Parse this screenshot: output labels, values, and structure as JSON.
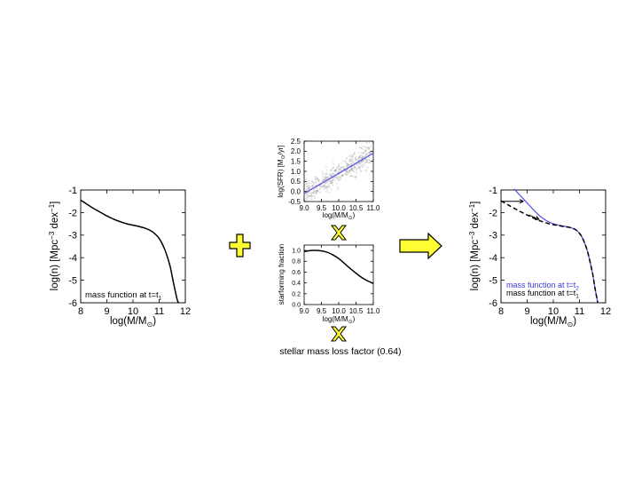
{
  "colors": {
    "background": "#ffffff",
    "axes": "#000000",
    "curve": "#000000",
    "blue_curve": "#5a5ae6",
    "scatter": "#9a9a9a",
    "symbol_fill": "#ffff33",
    "symbol_stroke": "#000000"
  },
  "operators": {
    "plus": "plus-icon",
    "times": "times-icon",
    "arrow": "right-arrow-icon"
  },
  "mass_loss_text": "stellar mass loss factor (0.64)",
  "chart_data": [
    {
      "id": "left",
      "type": "line",
      "xlabel": "log(M/M",
      "xlabel_sub": "⊙",
      "xlabel_close": ")",
      "ylabel": "log(n) [Mpc",
      "ylabel_sup1": "−3",
      "ylabel_mid": " dex",
      "ylabel_sup2": "−1",
      "ylabel_close": "]",
      "xlim": [
        8,
        12
      ],
      "ylim": [
        -6,
        -1
      ],
      "xticks": [
        "8",
        "9",
        "10",
        "11",
        "12"
      ],
      "yticks": [
        "-1",
        "-2",
        "-3",
        "-4",
        "-5",
        "-6"
      ],
      "annotation": "mass function at t=t",
      "annotation_sub": "1",
      "series": [
        {
          "x": [
            8.0,
            8.2,
            8.4,
            8.6,
            8.8,
            9.0,
            9.2,
            9.4,
            9.6,
            9.8,
            10.0,
            10.2,
            10.4,
            10.6,
            10.8,
            11.0,
            11.2,
            11.4,
            11.5,
            11.6,
            11.7,
            11.75
          ],
          "y": [
            -1.45,
            -1.6,
            -1.75,
            -1.89,
            -2.02,
            -2.15,
            -2.26,
            -2.36,
            -2.44,
            -2.51,
            -2.56,
            -2.61,
            -2.67,
            -2.76,
            -2.9,
            -3.15,
            -3.6,
            -4.3,
            -4.85,
            -5.4,
            -5.9,
            -6.0
          ]
        }
      ]
    },
    {
      "id": "sfr",
      "type": "scatter",
      "xlabel": "log(M/M",
      "xlabel_sub": "⊙",
      "xlabel_close": ")",
      "ylabel": "log(SFR) [M",
      "ylabel_sub": "⊙",
      "ylabel_close": "/yr]",
      "xlim": [
        9.0,
        11.0
      ],
      "ylim": [
        -0.5,
        2.5
      ],
      "xticks": [
        "9.0",
        "9.5",
        "10.0",
        "10.5",
        "11.0"
      ],
      "yticks": [
        "2.5",
        "2.0",
        "1.5",
        "1.0",
        "0.5",
        "0.0",
        "-0.5"
      ],
      "fit_line": {
        "x": [
          9.0,
          11.0
        ],
        "y": [
          -0.1,
          1.9
        ]
      }
    },
    {
      "id": "sf_fraction",
      "type": "line",
      "xlabel": "log(M/M",
      "xlabel_sub": "⊙",
      "xlabel_close": ")",
      "ylabel": "starforming fraction",
      "xlim": [
        9.0,
        11.0
      ],
      "ylim": [
        0.0,
        1.1
      ],
      "xticks": [
        "9.0",
        "9.5",
        "10.0",
        "10.5",
        "11.0"
      ],
      "yticks": [
        "1.0",
        "0.8",
        "0.6",
        "0.4",
        "0.2",
        "0.0"
      ],
      "series": [
        {
          "x": [
            9.0,
            9.2,
            9.4,
            9.6,
            9.8,
            10.0,
            10.2,
            10.4,
            10.6,
            10.8,
            11.0
          ],
          "y": [
            0.98,
            1.0,
            1.0,
            0.98,
            0.93,
            0.85,
            0.74,
            0.63,
            0.53,
            0.45,
            0.39
          ]
        }
      ]
    },
    {
      "id": "right",
      "type": "line",
      "xlabel": "log(M/M",
      "xlabel_sub": "⊙",
      "xlabel_close": ")",
      "ylabel": "log(n) [Mpc",
      "ylabel_sup1": "−3",
      "ylabel_mid": " dex",
      "ylabel_sup2": "−1",
      "ylabel_close": "]",
      "xlim": [
        8,
        12
      ],
      "ylim": [
        -6,
        -1
      ],
      "xticks": [
        "8",
        "9",
        "10",
        "11",
        "12"
      ],
      "yticks": [
        "-1",
        "-2",
        "-3",
        "-4",
        "-5",
        "-6"
      ],
      "legend": [
        {
          "text": "mass function at t=t",
          "sub": "2"
        },
        {
          "text": "mass function at t=t",
          "sub": "1"
        }
      ],
      "series": [
        {
          "style": "blue",
          "x": [
            8.5,
            8.7,
            8.9,
            9.1,
            9.3,
            9.5,
            9.7,
            9.9,
            10.1,
            10.3,
            10.5,
            10.7,
            10.9,
            11.1,
            11.3,
            11.5,
            11.6,
            11.7
          ],
          "y": [
            -0.95,
            -1.2,
            -1.45,
            -1.7,
            -1.95,
            -2.17,
            -2.33,
            -2.45,
            -2.53,
            -2.58,
            -2.63,
            -2.68,
            -2.8,
            -3.1,
            -3.7,
            -4.7,
            -5.4,
            -6.0
          ]
        },
        {
          "style": "dashed",
          "x": [
            8.0,
            8.3,
            8.6,
            8.9,
            9.2,
            9.5,
            9.8,
            10.1,
            10.4,
            10.7,
            10.9,
            11.1,
            11.3,
            11.5,
            11.6,
            11.7
          ],
          "y": [
            -1.48,
            -1.68,
            -1.87,
            -2.05,
            -2.22,
            -2.37,
            -2.48,
            -2.56,
            -2.62,
            -2.68,
            -2.8,
            -3.1,
            -3.7,
            -4.7,
            -5.4,
            -6.0
          ]
        }
      ],
      "arrows": [
        {
          "x1": 8.05,
          "y1": -1.5,
          "x2": 8.85,
          "y2": -1.5
        },
        {
          "x1": 9.05,
          "y1": -2.1,
          "x2": 9.45,
          "y2": -2.3
        }
      ]
    }
  ]
}
